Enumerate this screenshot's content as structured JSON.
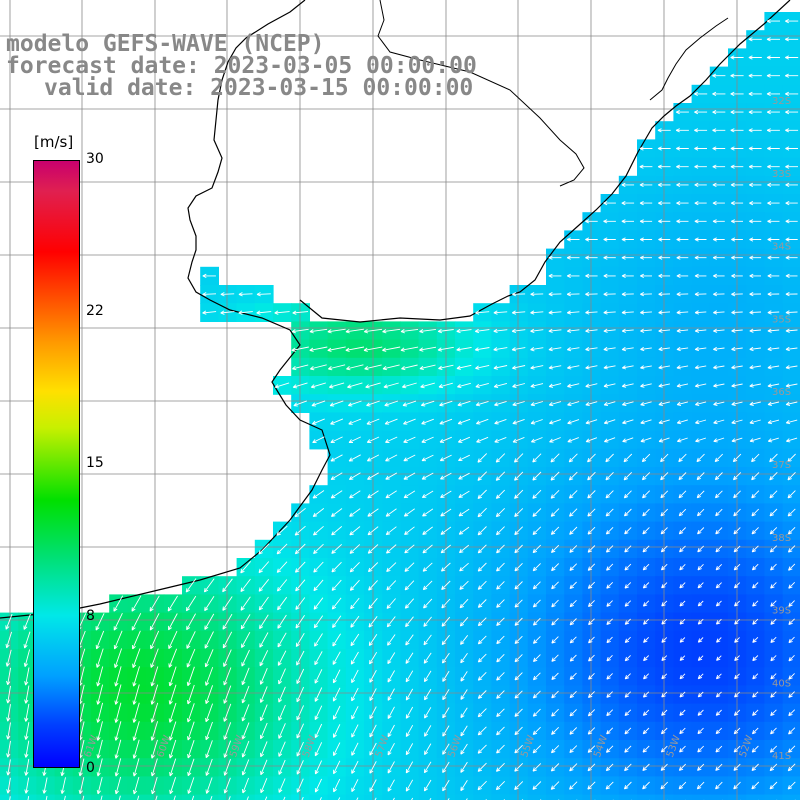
{
  "title": {
    "line1": "modelo GEFS-WAVE (NCEP)",
    "line2": "forecast date: 2023-03-05 00:00:00",
    "line3": "valid date: 2023-03-15 00:00:00"
  },
  "colorbar": {
    "unit": "[m/s]",
    "min": 0,
    "max": 30,
    "ticks": [
      "30",
      "22",
      "15",
      "8",
      "0"
    ],
    "tick_values": [
      30,
      22,
      15,
      8,
      0
    ]
  },
  "axes": {
    "longitude_labels": [
      "61W",
      "60W",
      "59W",
      "58W",
      "57W",
      "56W",
      "55W",
      "54W",
      "53W",
      "52W",
      "51W"
    ],
    "latitude_labels": [
      "32S",
      "33S",
      "34S",
      "35S",
      "36S",
      "37S",
      "38S",
      "39S",
      "40S",
      "41S"
    ]
  },
  "map": {
    "region": "Rio de la Plata / Uruguay / Buenos Aires coast",
    "land_color": "#ffffff",
    "coast_color": "#000000",
    "grid_color": "#888888"
  }
}
